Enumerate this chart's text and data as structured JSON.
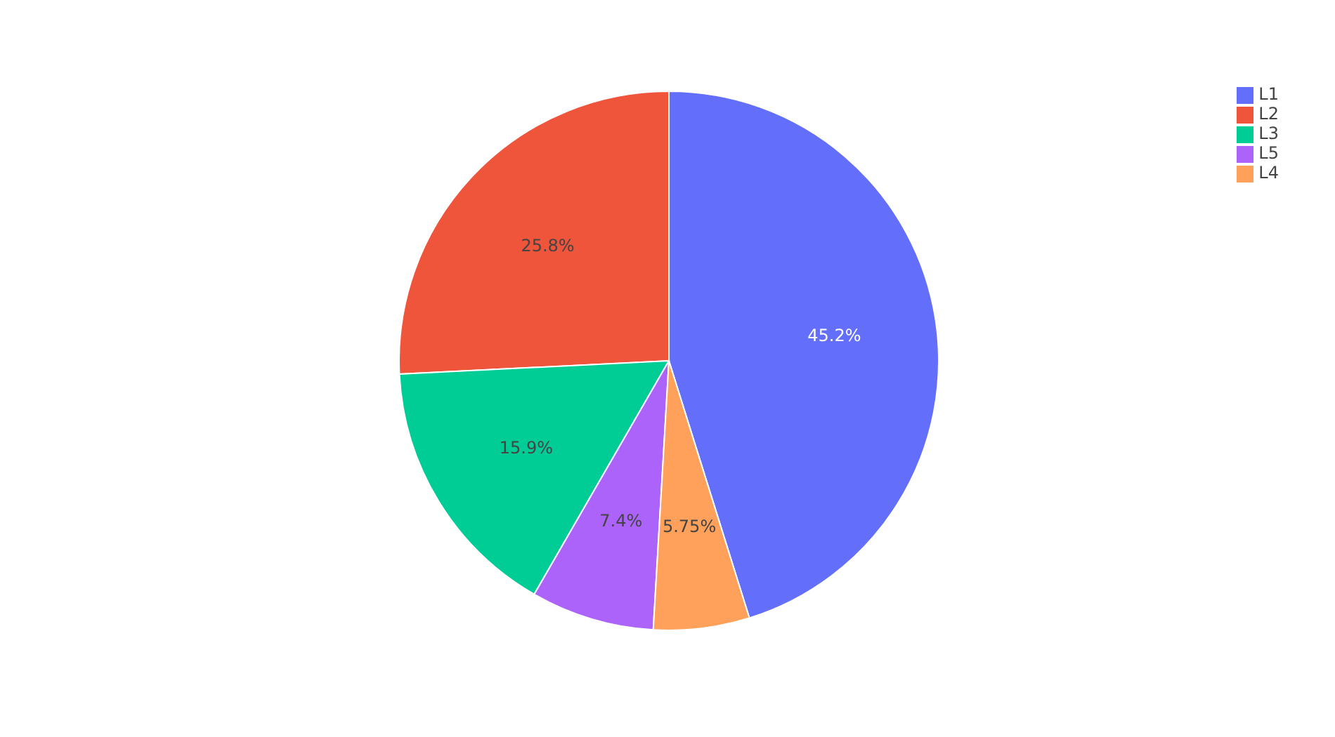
{
  "chart_data": {
    "type": "pie",
    "categories": [
      "L1",
      "L2",
      "L3",
      "L5",
      "L4"
    ],
    "values": [
      45.2,
      25.8,
      15.9,
      7.4,
      5.75
    ],
    "colors": [
      "#636efa",
      "#ef553b",
      "#00cc96",
      "#ab63fa",
      "#ffa15a"
    ],
    "value_labels": [
      "45.2%",
      "25.8%",
      "15.9%",
      "7.4%",
      "5.75%"
    ],
    "legend": "top right"
  }
}
